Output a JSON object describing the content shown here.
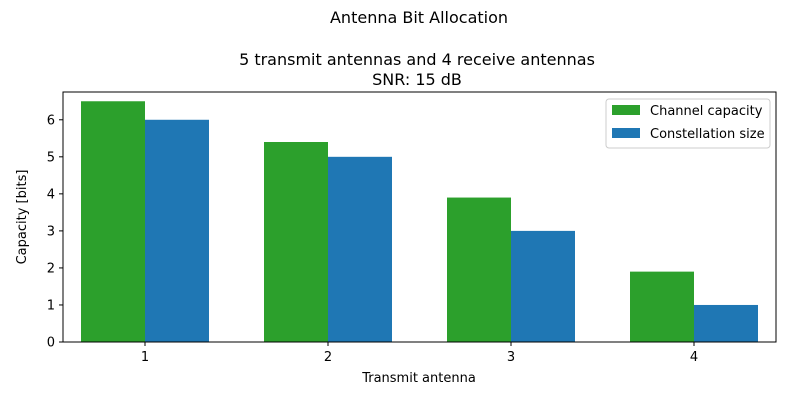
{
  "chart_data": {
    "type": "bar",
    "suptitle": "Antenna Bit Allocation",
    "title_lines": [
      "5 transmit antennas and 4 receive antennas",
      "SNR: 15 dB"
    ],
    "xlabel": "Transmit antenna",
    "ylabel": "Capacity [bits]",
    "categories": [
      "1",
      "2",
      "3",
      "4"
    ],
    "ylim": [
      0,
      6.75
    ],
    "yticks": [
      0,
      1,
      2,
      3,
      4,
      5,
      6
    ],
    "grid": false,
    "legend_position": "top-right",
    "series": [
      {
        "name": "Channel capacity",
        "color": "#2ca02c",
        "values": [
          6.5,
          5.4,
          3.9,
          1.9
        ]
      },
      {
        "name": "Constellation size",
        "color": "#1f77b4",
        "values": [
          6.0,
          5.0,
          3.0,
          1.0
        ]
      }
    ]
  }
}
